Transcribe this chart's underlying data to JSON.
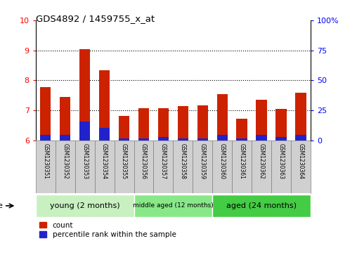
{
  "title": "GDS4892 / 1459755_x_at",
  "samples": [
    "GSM1230351",
    "GSM1230352",
    "GSM1230353",
    "GSM1230354",
    "GSM1230355",
    "GSM1230356",
    "GSM1230357",
    "GSM1230358",
    "GSM1230359",
    "GSM1230360",
    "GSM1230361",
    "GSM1230362",
    "GSM1230363",
    "GSM1230364"
  ],
  "count_values": [
    7.78,
    7.45,
    9.05,
    8.35,
    6.82,
    7.08,
    7.08,
    7.15,
    7.18,
    7.55,
    6.72,
    7.35,
    7.05,
    7.58
  ],
  "percentile_values": [
    6.18,
    6.18,
    6.62,
    6.42,
    6.08,
    6.08,
    6.12,
    6.08,
    6.08,
    6.18,
    6.08,
    6.18,
    6.12,
    6.18
  ],
  "bar_bottom": 6.0,
  "red_color": "#cc2200",
  "blue_color": "#2222cc",
  "ylim_left": [
    6,
    10
  ],
  "ylim_right": [
    0,
    100
  ],
  "yticks_left": [
    6,
    7,
    8,
    9,
    10
  ],
  "yticks_right": [
    0,
    25,
    50,
    75,
    100
  ],
  "ytick_labels_right": [
    "0",
    "25",
    "50",
    "75",
    "100%"
  ],
  "groups": [
    {
      "label": "young (2 months)",
      "start": 0,
      "end": 5
    },
    {
      "label": "middle aged (12 months)",
      "start": 5,
      "end": 9
    },
    {
      "label": "aged (24 months)",
      "start": 9,
      "end": 14
    }
  ],
  "group_colors": [
    "#c8f0c0",
    "#88e888",
    "#44cc44"
  ],
  "age_label": "age",
  "legend_count": "count",
  "legend_percentile": "percentile rank within the sample",
  "bar_width": 0.55,
  "sample_box_color": "#d0d0d0",
  "grid_ticks": [
    7,
    8,
    9
  ]
}
